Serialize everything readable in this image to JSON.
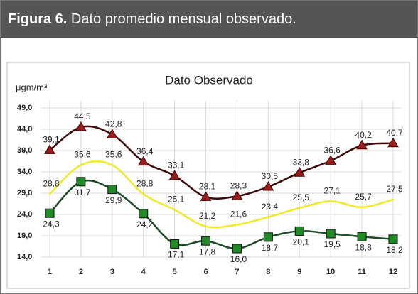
{
  "caption": {
    "label": "Figura 6.",
    "text": "Dato promedio mensual observado."
  },
  "chart_data": {
    "type": "line",
    "title": "Dato Observado",
    "y_label": "μgm/m³",
    "categories": [
      "1",
      "2",
      "3",
      "4",
      "5",
      "6",
      "7",
      "8",
      "9",
      "10",
      "11",
      "12"
    ],
    "ylim": [
      14,
      49
    ],
    "yticks": [
      {
        "value": 14,
        "label": "14,0"
      },
      {
        "value": 19,
        "label": "19,0"
      },
      {
        "value": 24,
        "label": "24,0"
      },
      {
        "value": 29,
        "label": "29,0"
      },
      {
        "value": 34,
        "label": "34,0"
      },
      {
        "value": 39,
        "label": "39,0"
      },
      {
        "value": 44,
        "label": "44,0"
      },
      {
        "value": 49,
        "label": "49,0"
      }
    ],
    "grid": true,
    "series": [
      {
        "color": "#3d0808",
        "marker": "triangle",
        "marker_color": "#9b1c1c",
        "values": [
          39.1,
          44.5,
          42.8,
          36.4,
          33.1,
          28.1,
          28.3,
          30.5,
          33.8,
          36.6,
          40.2,
          40.7
        ],
        "value_labels": [
          "39,1",
          "44,5",
          "42,8",
          "36,4",
          "33,1",
          "28,1",
          "28,3",
          "30,5",
          "33,8",
          "36,6",
          "40,2",
          "40,7"
        ]
      },
      {
        "color": "#f2e82a",
        "marker": "none",
        "marker_color": "#f2e82a",
        "values": [
          28.8,
          35.6,
          35.6,
          28.8,
          25.1,
          21.2,
          21.6,
          23.4,
          25.5,
          27.1,
          25.7,
          27.5
        ],
        "value_labels": [
          "28,8",
          "35,6",
          "35,6",
          "28,8",
          "25,1",
          "21,2",
          "21,6",
          "23,4",
          "25,5",
          "27,1",
          "25,7",
          "27,5"
        ]
      },
      {
        "color": "#1d4a27",
        "marker": "square",
        "marker_color": "#1f8a26",
        "values": [
          24.3,
          31.7,
          29.9,
          24.2,
          17.1,
          17.8,
          16.0,
          18.7,
          20.1,
          19.5,
          18.8,
          18.2
        ],
        "value_labels": [
          "24,3",
          "31,7",
          "29,9",
          "24,2",
          "17,1",
          "17,8",
          "16,0",
          "18,7",
          "20,1",
          "19,5",
          "18,8",
          "18,2"
        ]
      }
    ]
  }
}
